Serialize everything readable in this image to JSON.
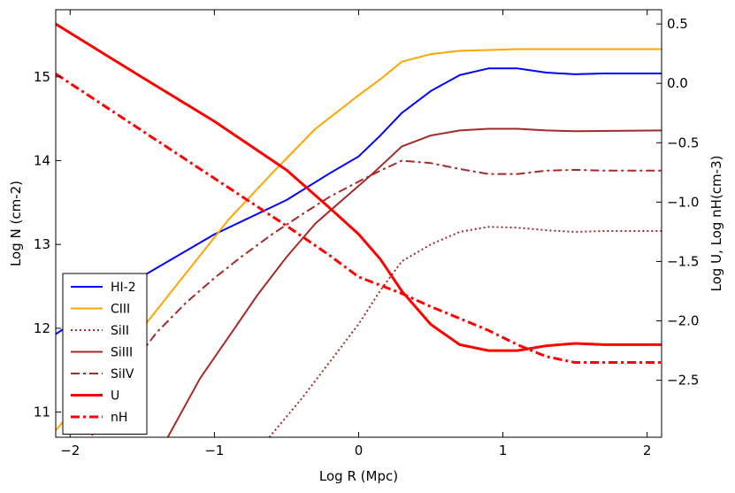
{
  "chart_data": {
    "type": "line",
    "title": "",
    "xlabel": "Log R (Mpc)",
    "ylabel_left": "Log N (cm-2)",
    "ylabel_right": "Log U, Log nH(cm-3)",
    "xlim": [
      -2.1,
      2.1
    ],
    "ylim_left": [
      10.7,
      15.8
    ],
    "ylim_right": [
      -2.98,
      0.62
    ],
    "x_ticks": [
      -2,
      -1,
      0,
      1,
      2
    ],
    "x_tick_labels": [
      "−2",
      "−1",
      "0",
      "1",
      "2"
    ],
    "y_left_ticks": [
      11,
      12,
      13,
      14,
      15
    ],
    "y_left_tick_labels": [
      "11",
      "12",
      "13",
      "14",
      "15"
    ],
    "y_right_ticks": [
      0.5,
      0.0,
      -0.5,
      -1.0,
      -1.5,
      -2.0,
      -2.5
    ],
    "y_right_tick_labels": [
      "0.5",
      "0.0",
      "−0.5",
      "−1.0",
      "−1.5",
      "−2.0",
      "−2.5"
    ],
    "legend_position": "lower-left",
    "series": [
      {
        "name": "HI-2",
        "axis": "left",
        "color": "#0000ff",
        "style": "solid",
        "width": 2,
        "x": [
          -2.1,
          -1.5,
          -1.0,
          -0.5,
          -0.2,
          0.0,
          0.15,
          0.3,
          0.5,
          0.7,
          0.9,
          1.1,
          1.3,
          1.5,
          1.7,
          2.1
        ],
        "y": [
          11.93,
          12.62,
          13.12,
          13.53,
          13.85,
          14.05,
          14.3,
          14.57,
          14.83,
          15.02,
          15.1,
          15.1,
          15.05,
          15.03,
          15.04,
          15.04
        ]
      },
      {
        "name": "CIII",
        "axis": "left",
        "color": "#ffa500",
        "style": "solid",
        "width": 2,
        "x": [
          -2.1,
          -1.8,
          -1.5,
          -1.2,
          -0.9,
          -0.6,
          -0.3,
          0.0,
          0.15,
          0.3,
          0.5,
          0.7,
          0.9,
          1.1,
          1.5,
          2.1
        ],
        "y": [
          10.78,
          11.4,
          12.0,
          12.65,
          13.3,
          13.85,
          14.38,
          14.78,
          14.97,
          15.18,
          15.27,
          15.31,
          15.32,
          15.33,
          15.33,
          15.33
        ]
      },
      {
        "name": "SiII",
        "axis": "left",
        "color": "#a52a2a",
        "style": "dotted",
        "width": 2,
        "x": [
          -0.62,
          -0.4,
          -0.2,
          0.0,
          0.15,
          0.3,
          0.5,
          0.7,
          0.9,
          1.1,
          1.3,
          1.5,
          1.7,
          2.1
        ],
        "y": [
          10.7,
          11.15,
          11.6,
          12.05,
          12.45,
          12.8,
          13.0,
          13.15,
          13.21,
          13.2,
          13.17,
          13.15,
          13.16,
          13.16
        ]
      },
      {
        "name": "SiIII",
        "axis": "left",
        "color": "#a52a2a",
        "style": "solid",
        "width": 2,
        "x": [
          -1.33,
          -1.1,
          -0.9,
          -0.7,
          -0.5,
          -0.3,
          -0.1,
          0.1,
          0.3,
          0.5,
          0.7,
          0.9,
          1.1,
          1.3,
          1.5,
          2.1
        ],
        "y": [
          10.68,
          11.4,
          11.9,
          12.4,
          12.85,
          13.25,
          13.55,
          13.85,
          14.17,
          14.3,
          14.36,
          14.38,
          14.38,
          14.36,
          14.35,
          14.36
        ]
      },
      {
        "name": "SiIV",
        "axis": "left",
        "color": "#a52a2a",
        "style": "dashdot",
        "width": 2,
        "x": [
          -1.85,
          -1.6,
          -1.4,
          -1.2,
          -1.0,
          -0.8,
          -0.6,
          -0.4,
          -0.2,
          0.0,
          0.15,
          0.3,
          0.5,
          0.7,
          0.9,
          1.1,
          1.3,
          1.5,
          1.7,
          2.1
        ],
        "y": [
          10.72,
          11.5,
          11.95,
          12.3,
          12.6,
          12.87,
          13.12,
          13.35,
          13.57,
          13.75,
          13.88,
          14.0,
          13.97,
          13.9,
          13.84,
          13.84,
          13.88,
          13.89,
          13.88,
          13.88
        ]
      },
      {
        "name": "U",
        "axis": "right",
        "color": "#ff0000",
        "style": "solid",
        "width": 3,
        "x": [
          -2.1,
          -1.5,
          -1.0,
          -0.5,
          -0.2,
          0.0,
          0.15,
          0.3,
          0.5,
          0.7,
          0.9,
          1.1,
          1.3,
          1.5,
          1.7,
          2.1
        ],
        "y": [
          0.5,
          0.05,
          -0.32,
          -0.73,
          -1.05,
          -1.27,
          -1.48,
          -1.75,
          -2.03,
          -2.2,
          -2.25,
          -2.25,
          -2.21,
          -2.19,
          -2.2,
          -2.2
        ]
      },
      {
        "name": "nH",
        "axis": "right",
        "color": "#ff0000",
        "style": "dashdot",
        "width": 3,
        "x": [
          -2.1,
          -1.5,
          -1.0,
          -0.5,
          -0.2,
          0.0,
          0.15,
          0.3,
          0.5,
          0.7,
          0.9,
          1.1,
          1.3,
          1.5,
          1.7,
          2.1
        ],
        "y": [
          0.08,
          -0.4,
          -0.8,
          -1.2,
          -1.45,
          -1.63,
          -1.7,
          -1.77,
          -1.88,
          -1.98,
          -2.08,
          -2.2,
          -2.3,
          -2.35,
          -2.35,
          -2.35
        ]
      }
    ]
  }
}
